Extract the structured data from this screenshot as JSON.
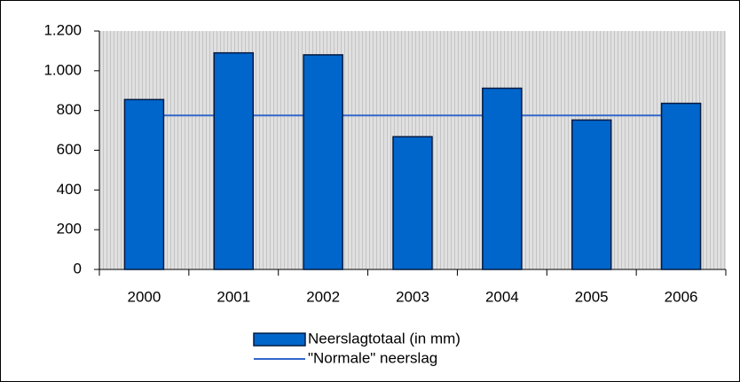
{
  "chart_data": {
    "type": "bar",
    "categories": [
      "2000",
      "2001",
      "2002",
      "2003",
      "2004",
      "2005",
      "2006"
    ],
    "series": [
      {
        "name": "Neerslagtotaal (in mm)",
        "type": "bar",
        "color": "#0066cc",
        "values": [
          855,
          1090,
          1080,
          668,
          912,
          752,
          836
        ]
      },
      {
        "name": "\"Normale\" neerslag",
        "type": "line",
        "color": "#3366cc",
        "values": [
          775,
          775,
          775,
          775,
          775,
          775,
          775
        ]
      }
    ],
    "ylim": [
      0,
      1200
    ],
    "yticks": [
      0,
      200,
      400,
      600,
      800,
      {
        "value": 1000,
        "label": "1.000"
      },
      {
        "value": 1200,
        "label": "1.200"
      }
    ],
    "legend": "bottom"
  }
}
